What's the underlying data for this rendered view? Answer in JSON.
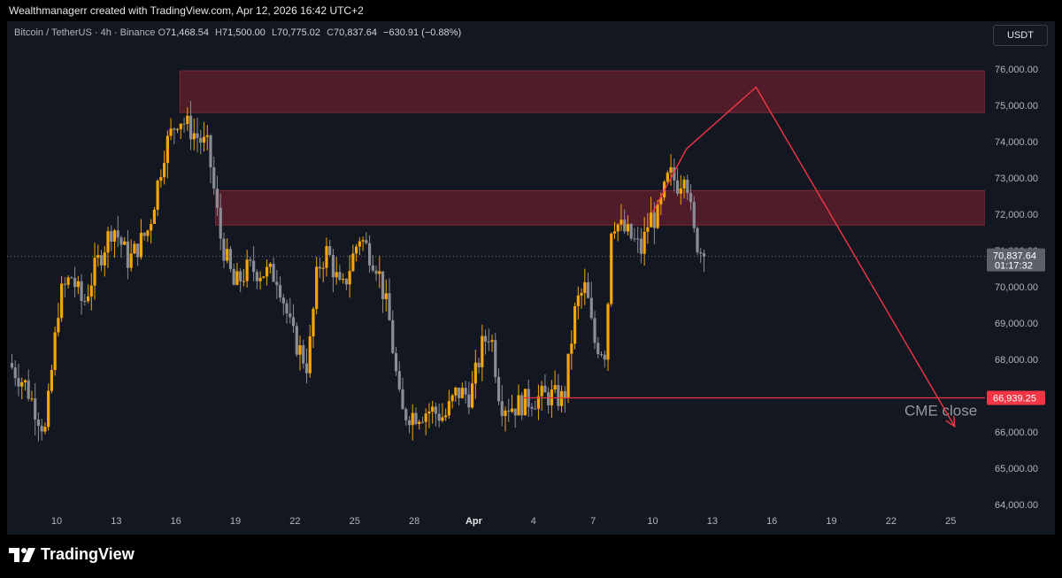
{
  "header": {
    "attribution": "Wealthmanagerr created with TradingView.com, Apr 12, 2026 16:42 UTC+2"
  },
  "legend": {
    "symbol": "Bitcoin / TetherUS · 4h · Binance",
    "o_label": "O",
    "o_value": "71,468.54",
    "h_label": "H",
    "h_value": "71,500.00",
    "l_label": "L",
    "l_value": "70,775.02",
    "c_label": "C",
    "c_value": "70,837.64",
    "change": "−630.91 (−0.88%)"
  },
  "currency": "USDT",
  "footer": {
    "brand": "TradingView"
  },
  "colors": {
    "background": "#131722",
    "bull": "#f7a600",
    "bear": "#8a8d96",
    "zone": "#5c1d2b",
    "zone_border": "#7a2838",
    "arrow": "#f23645",
    "cme_line": "#f23645",
    "axis_text": "#b2b5be"
  },
  "chart_data": {
    "type": "candlestick",
    "timeframe": "4h",
    "ylim": [
      63700,
      76800
    ],
    "y_ticks": [
      64000,
      65000,
      66000,
      67000,
      68000,
      69000,
      70000,
      71000,
      72000,
      73000,
      74000,
      75000,
      76000
    ],
    "y_tick_labels": [
      "64,000.00",
      "65,000.00",
      "66,000.00",
      "67,000.00",
      "68,000.00",
      "69,000.00",
      "70,000.00",
      "71,000.00",
      "72,000.00",
      "73,000.00",
      "74,000.00",
      "75,000.00",
      "76,000.00"
    ],
    "x_ticks": [
      {
        "day": 10,
        "label": "10"
      },
      {
        "day": 13,
        "label": "13"
      },
      {
        "day": 16,
        "label": "16"
      },
      {
        "day": 19,
        "label": "19"
      },
      {
        "day": 22,
        "label": "22"
      },
      {
        "day": 25,
        "label": "25"
      },
      {
        "day": 28,
        "label": "28"
      },
      {
        "day": 31,
        "label": "Apr"
      },
      {
        "day": 34,
        "label": "4"
      },
      {
        "day": 37,
        "label": "7"
      },
      {
        "day": 40,
        "label": "10"
      },
      {
        "day": 43,
        "label": "13"
      },
      {
        "day": 46,
        "label": "16"
      },
      {
        "day": 49,
        "label": "19"
      },
      {
        "day": 52,
        "label": "22"
      },
      {
        "day": 55,
        "label": "25"
      }
    ],
    "x_range_days": [
      7.75,
      56.0
    ],
    "last_price": {
      "value": 70837.64,
      "label": "70,837.64",
      "countdown": "01:17:32"
    },
    "supply_zones": [
      {
        "from_day": 16.2,
        "y_low": 74800,
        "y_high": 75950
      },
      {
        "from_day": 18.0,
        "y_low": 71700,
        "y_high": 72650
      }
    ],
    "cme_level": {
      "value": 66939.25,
      "label": "66,939.25",
      "from_day": 33.5,
      "text": "CME close"
    },
    "projection_path": [
      {
        "day": 40.0,
        "price": 72050
      },
      {
        "day": 41.7,
        "price": 73800
      },
      {
        "day": 45.2,
        "price": 75500
      },
      {
        "day": 55.2,
        "price": 66150
      }
    ],
    "wave_anchors": [
      {
        "day": 7.75,
        "price": 67900
      },
      {
        "day": 8.6,
        "price": 67300
      },
      {
        "day": 9.2,
        "price": 66500
      },
      {
        "day": 9.6,
        "price": 66000
      },
      {
        "day": 10.3,
        "price": 69700
      },
      {
        "day": 10.9,
        "price": 70300
      },
      {
        "day": 11.5,
        "price": 69500
      },
      {
        "day": 12.1,
        "price": 70500
      },
      {
        "day": 13.0,
        "price": 71700
      },
      {
        "day": 13.8,
        "price": 70700
      },
      {
        "day": 14.8,
        "price": 71600
      },
      {
        "day": 15.6,
        "price": 73800
      },
      {
        "day": 16.3,
        "price": 74700
      },
      {
        "day": 16.8,
        "price": 74400
      },
      {
        "day": 17.8,
        "price": 73800
      },
      {
        "day": 18.4,
        "price": 71400
      },
      {
        "day": 19.1,
        "price": 70000
      },
      {
        "day": 19.8,
        "price": 70500
      },
      {
        "day": 20.6,
        "price": 70400
      },
      {
        "day": 21.3,
        "price": 70300
      },
      {
        "day": 22.0,
        "price": 68700
      },
      {
        "day": 22.8,
        "price": 67800
      },
      {
        "day": 23.3,
        "price": 70500
      },
      {
        "day": 23.8,
        "price": 71000
      },
      {
        "day": 24.5,
        "price": 69800
      },
      {
        "day": 25.4,
        "price": 71400
      },
      {
        "day": 26.3,
        "price": 70600
      },
      {
        "day": 26.9,
        "price": 69100
      },
      {
        "day": 27.5,
        "price": 66500
      },
      {
        "day": 28.2,
        "price": 66500
      },
      {
        "day": 29.0,
        "price": 66600
      },
      {
        "day": 29.7,
        "price": 66400
      },
      {
        "day": 30.3,
        "price": 67100
      },
      {
        "day": 31.0,
        "price": 67000
      },
      {
        "day": 31.6,
        "price": 68400
      },
      {
        "day": 32.0,
        "price": 68800
      },
      {
        "day": 32.5,
        "price": 66800
      },
      {
        "day": 33.2,
        "price": 66700
      },
      {
        "day": 34.0,
        "price": 66900
      },
      {
        "day": 35.0,
        "price": 67000
      },
      {
        "day": 35.7,
        "price": 66900
      },
      {
        "day": 36.3,
        "price": 69500
      },
      {
        "day": 36.8,
        "price": 70000
      },
      {
        "day": 37.2,
        "price": 68500
      },
      {
        "day": 37.8,
        "price": 68200
      },
      {
        "day": 38.1,
        "price": 71900
      },
      {
        "day": 38.6,
        "price": 71600
      },
      {
        "day": 39.0,
        "price": 71400
      },
      {
        "day": 39.6,
        "price": 71000
      },
      {
        "day": 40.0,
        "price": 71900
      },
      {
        "day": 40.4,
        "price": 71900
      },
      {
        "day": 41.0,
        "price": 73100
      },
      {
        "day": 41.5,
        "price": 72800
      },
      {
        "day": 41.8,
        "price": 73400
      },
      {
        "day": 42.2,
        "price": 71500
      },
      {
        "day": 42.7,
        "price": 70837.64
      }
    ]
  }
}
